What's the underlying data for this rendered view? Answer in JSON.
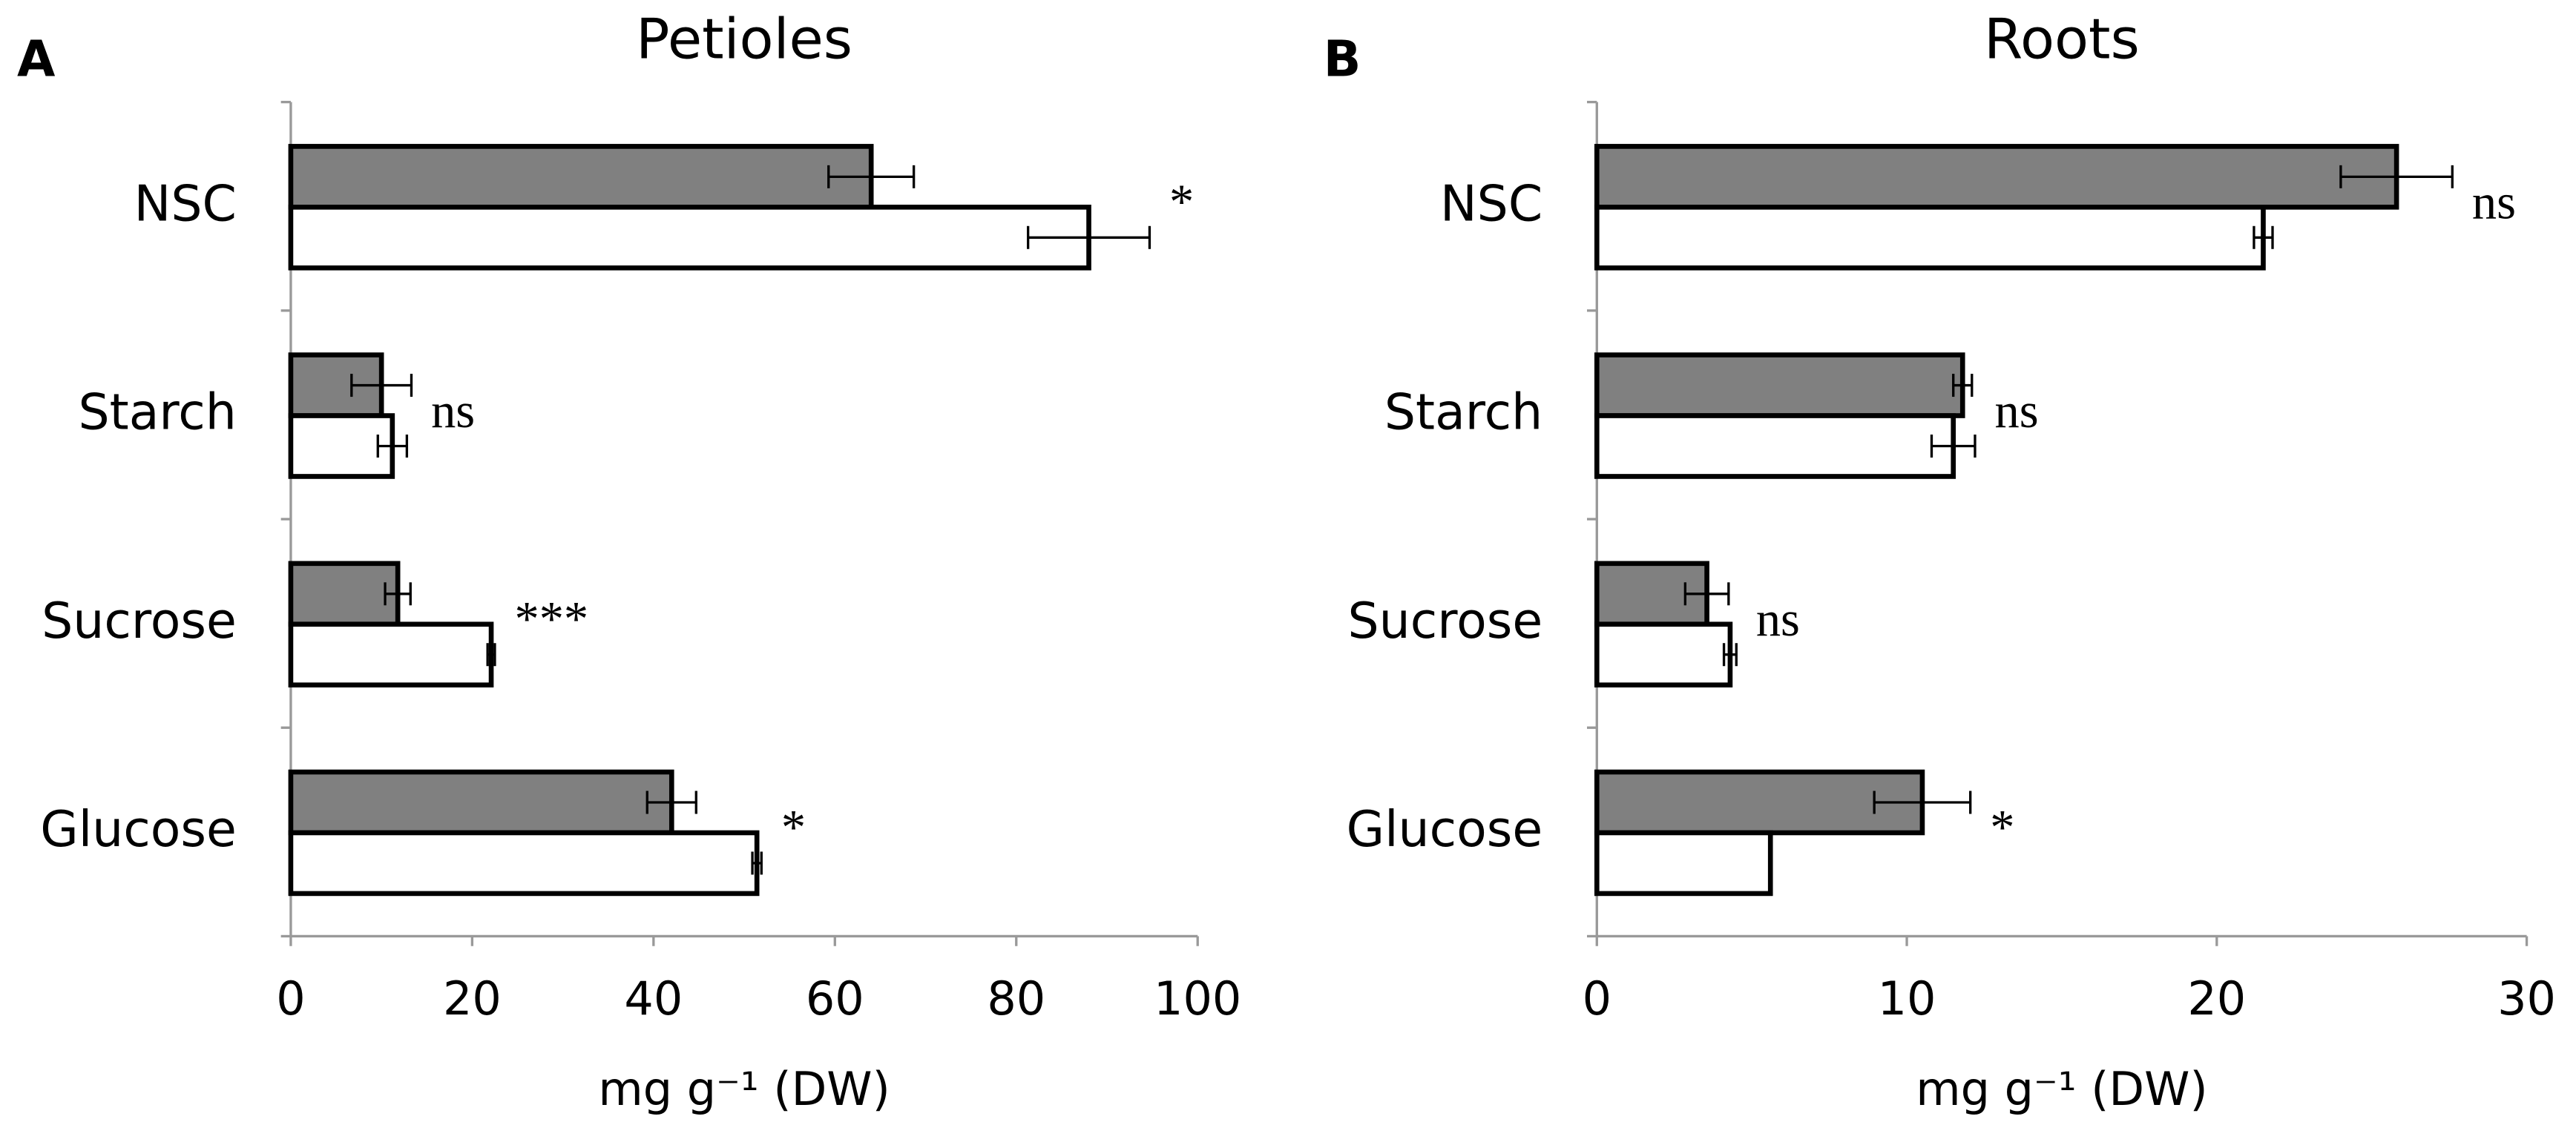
{
  "chart_data": [
    {
      "type": "bar",
      "panel": "A",
      "title": "Petioles",
      "xlabel": "mg g⁻¹ (DW)",
      "categories": [
        "NSC",
        "Starch",
        "Sucrose",
        "Glucose"
      ],
      "series": [
        {
          "color": "#808080",
          "values": [
            64,
            10,
            11.8,
            42
          ],
          "errors": [
            4.7,
            3.3,
            1.4,
            2.7
          ]
        },
        {
          "color": "#ffffff",
          "values": [
            88,
            11.2,
            22.1,
            51.4
          ],
          "errors": [
            6.7,
            1.6,
            0.4,
            0.5
          ]
        }
      ],
      "annotations": [
        "*",
        "ns",
        "***",
        "*"
      ],
      "xlim": [
        0,
        100
      ],
      "xticks": [
        0,
        20,
        40,
        60,
        80,
        100
      ]
    },
    {
      "type": "bar",
      "panel": "B",
      "title": "Roots",
      "xlabel": "mg g⁻¹ (DW)",
      "categories": [
        "NSC",
        "Starch",
        "Sucrose",
        "Glucose"
      ],
      "series": [
        {
          "color": "#808080",
          "values": [
            25.8,
            11.8,
            3.55,
            10.5
          ],
          "errors": [
            1.8,
            0.3,
            0.7,
            1.55
          ]
        },
        {
          "color": "#ffffff",
          "values": [
            21.5,
            11.5,
            4.3,
            5.6
          ],
          "errors": [
            0.3,
            0.7,
            0.2,
            null
          ]
        }
      ],
      "annotations": [
        "ns",
        "ns",
        "ns",
        "*"
      ],
      "xlim": [
        0,
        30
      ],
      "xticks": [
        0,
        10,
        20,
        30
      ]
    }
  ]
}
